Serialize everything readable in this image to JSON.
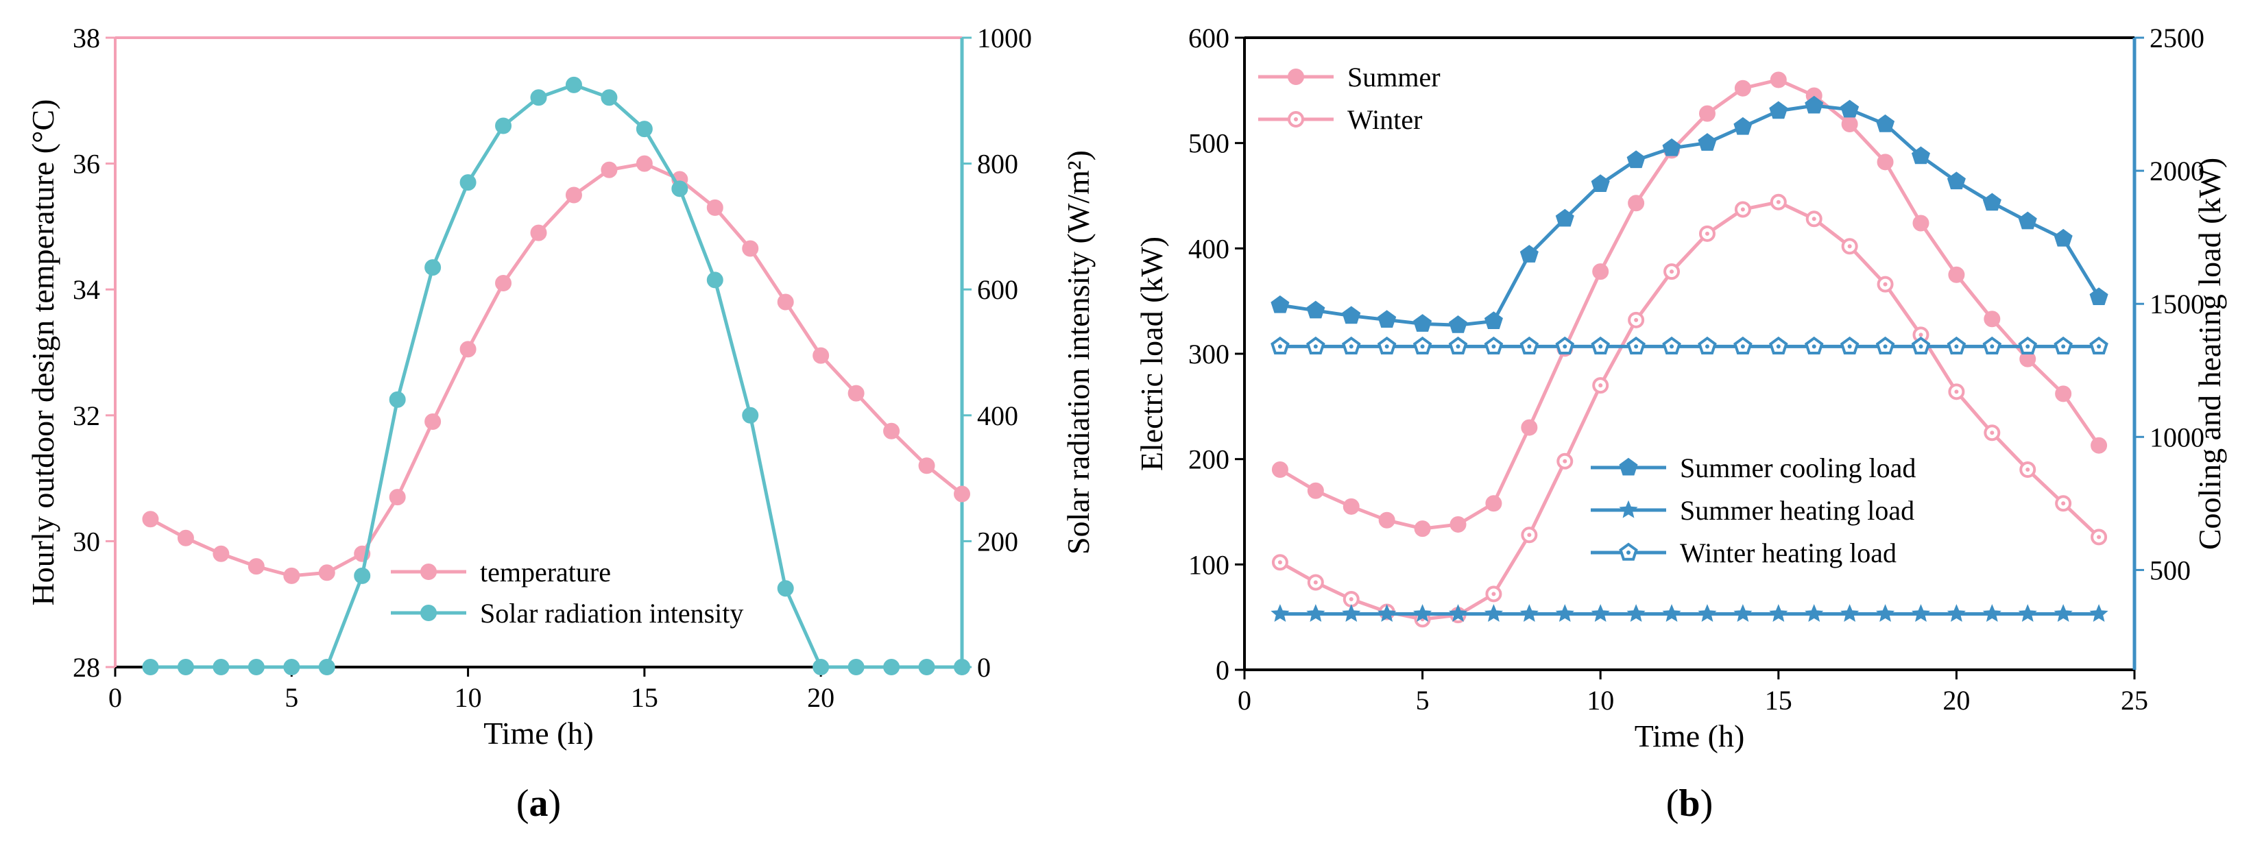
{
  "chart_data": [
    {
      "panel": "a",
      "type": "line",
      "panel_label": "a",
      "xlabel": "Time (h)",
      "ylabel_left": "Hourly outdoor design temperature (°C)",
      "ylabel_right": "Solar radiation intensity (W/m²)",
      "xlim": [
        0,
        24
      ],
      "ylim_left": [
        28,
        38
      ],
      "ylim_right": [
        0,
        1000
      ],
      "x_ticks": [
        0,
        5,
        10,
        15,
        20
      ],
      "y_ticks_left": [
        28,
        30,
        32,
        34,
        36,
        38
      ],
      "y_ticks_right": [
        0,
        200,
        400,
        600,
        800,
        1000
      ],
      "legend_position": "bottom-right",
      "x": [
        1,
        2,
        3,
        4,
        5,
        6,
        7,
        8,
        9,
        10,
        11,
        12,
        13,
        14,
        15,
        16,
        17,
        18,
        19,
        20,
        21,
        22,
        23,
        24
      ],
      "series": [
        {
          "name": "temperature",
          "axis": "left",
          "color": "#f4a0b5",
          "marker": "filled-circle",
          "values": [
            30.35,
            30.05,
            29.8,
            29.6,
            29.45,
            29.5,
            29.8,
            30.7,
            31.9,
            33.05,
            34.1,
            34.9,
            35.5,
            35.9,
            36.0,
            35.75,
            35.3,
            34.65,
            33.8,
            32.95,
            32.35,
            31.75,
            31.2,
            30.75
          ]
        },
        {
          "name": "Solar radiation  intensity",
          "axis": "right",
          "color": "#5fbfc8",
          "marker": "filled-circle",
          "values": [
            0,
            0,
            0,
            0,
            0,
            0,
            145,
            425,
            635,
            770,
            860,
            905,
            925,
            905,
            855,
            760,
            615,
            400,
            125,
            0,
            0,
            0,
            0,
            0
          ]
        }
      ]
    },
    {
      "panel": "b",
      "type": "line",
      "panel_label": "b",
      "xlabel": "Time (h)",
      "ylabel_left": "Electric load (kW)",
      "ylabel_right": "Cooling and heating load (kW)",
      "xlim": [
        0,
        25
      ],
      "ylim_left": [
        0,
        600
      ],
      "ylim_right": [
        125,
        2500
      ],
      "x_ticks": [
        0,
        5,
        10,
        15,
        20,
        25
      ],
      "y_ticks_left": [
        0,
        100,
        200,
        300,
        400,
        500,
        600
      ],
      "y_ticks_right": [
        500,
        1000,
        1500,
        2000,
        2500
      ],
      "legend_left_position": "top-left",
      "legend_right_position": "center",
      "x": [
        1,
        2,
        3,
        4,
        5,
        6,
        7,
        8,
        9,
        10,
        11,
        12,
        13,
        14,
        15,
        16,
        17,
        18,
        19,
        20,
        21,
        22,
        23,
        24
      ],
      "series": [
        {
          "name": "Summer",
          "axis": "left",
          "color": "#f4a0b5",
          "marker": "filled-circle",
          "values": [
            190,
            170,
            155,
            142,
            134,
            138,
            158,
            230,
            305,
            378,
            443,
            493,
            528,
            552,
            560,
            545,
            518,
            482,
            424,
            375,
            333,
            295,
            262,
            213
          ]
        },
        {
          "name": "Winter",
          "axis": "left",
          "color": "#f4a0b5",
          "marker": "hollow-circle",
          "values": [
            102,
            83,
            67,
            55,
            48,
            52,
            72,
            128,
            198,
            270,
            332,
            378,
            414,
            437,
            444,
            428,
            402,
            366,
            318,
            264,
            225,
            190,
            158,
            126
          ]
        },
        {
          "name": "Summer cooling load",
          "axis": "right",
          "color": "#3d8fc4",
          "marker": "filled-pentagon",
          "values": [
            1495,
            1475,
            1455,
            1440,
            1425,
            1420,
            1435,
            1685,
            1820,
            1950,
            2040,
            2085,
            2105,
            2165,
            2225,
            2245,
            2230,
            2175,
            2055,
            1960,
            1880,
            1810,
            1745,
            1525
          ]
        },
        {
          "name": "Summer heating load",
          "axis": "right",
          "color": "#3d8fc4",
          "marker": "filled-star",
          "values": [
            335,
            335,
            335,
            335,
            335,
            335,
            335,
            335,
            335,
            335,
            335,
            335,
            335,
            335,
            335,
            335,
            335,
            335,
            335,
            335,
            335,
            335,
            335,
            335
          ]
        },
        {
          "name": "Winter heating load",
          "axis": "right",
          "color": "#3d8fc4",
          "marker": "hollow-pentagon",
          "values": [
            1340,
            1340,
            1340,
            1340,
            1340,
            1340,
            1340,
            1340,
            1340,
            1340,
            1340,
            1340,
            1340,
            1340,
            1340,
            1340,
            1340,
            1340,
            1340,
            1340,
            1340,
            1340,
            1340,
            1340
          ]
        }
      ]
    }
  ]
}
